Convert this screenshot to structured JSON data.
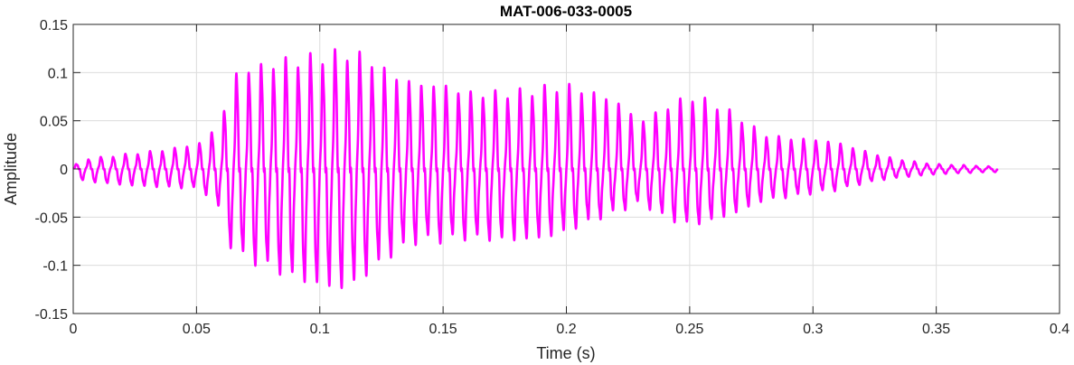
{
  "chart_data": {
    "type": "line",
    "title": "MAT-006-033-0005",
    "xlabel": "Time (s)",
    "ylabel": "Amplitude",
    "xlim": [
      0,
      0.4
    ],
    "ylim": [
      -0.15,
      0.15
    ],
    "xticks": [
      0,
      0.05,
      0.1,
      0.15,
      0.2,
      0.25,
      0.3,
      0.35,
      0.4
    ],
    "xtick_labels": [
      "0",
      "0.05",
      "0.1",
      "0.15",
      "0.2",
      "0.25",
      "0.3",
      "0.35",
      "0.4"
    ],
    "yticks": [
      -0.15,
      -0.1,
      -0.05,
      0,
      0.05,
      0.1,
      0.15
    ],
    "ytick_labels": [
      "-0.15",
      "-0.1",
      "-0.05",
      "0",
      "0.05",
      "0.1",
      "0.15"
    ],
    "grid": true,
    "series": [
      {
        "color": "#ff00ff",
        "duration": 0.375,
        "envelope": {
          "t": [
            0,
            0.005,
            0.02,
            0.04,
            0.052,
            0.06,
            0.065,
            0.075,
            0.085,
            0.1,
            0.11,
            0.115,
            0.12,
            0.13,
            0.14,
            0.15,
            0.16,
            0.175,
            0.19,
            0.2,
            0.21,
            0.22,
            0.23,
            0.24,
            0.25,
            0.26,
            0.27,
            0.28,
            0.29,
            0.3,
            0.31,
            0.32,
            0.33,
            0.34,
            0.35,
            0.36,
            0.375
          ],
          "pos": [
            0.003,
            0.01,
            0.015,
            0.02,
            0.025,
            0.045,
            0.09,
            0.1,
            0.11,
            0.12,
            0.122,
            0.118,
            0.11,
            0.09,
            0.08,
            0.08,
            0.075,
            0.08,
            0.085,
            0.085,
            0.075,
            0.065,
            0.045,
            0.06,
            0.075,
            0.07,
            0.055,
            0.035,
            0.03,
            0.028,
            0.025,
            0.018,
            0.012,
            0.008,
            0.005,
            0.004,
            0.002
          ],
          "neg": [
            -0.01,
            -0.012,
            -0.015,
            -0.018,
            -0.02,
            -0.045,
            -0.09,
            -0.097,
            -0.103,
            -0.11,
            -0.113,
            -0.108,
            -0.1,
            -0.085,
            -0.075,
            -0.075,
            -0.07,
            -0.068,
            -0.065,
            -0.06,
            -0.052,
            -0.045,
            -0.035,
            -0.05,
            -0.055,
            -0.048,
            -0.04,
            -0.03,
            -0.028,
            -0.025,
            -0.022,
            -0.015,
            -0.01,
            -0.007,
            -0.005,
            -0.004,
            -0.003
          ]
        },
        "cycle_period_s": 0.005
      }
    ]
  }
}
